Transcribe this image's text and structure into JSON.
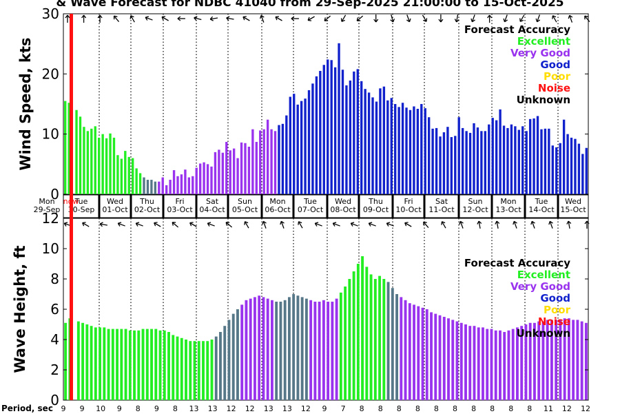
{
  "title": "& Wave Forecast for NDBC 41040 from 29-Sep-2025 21:00:00 to 15-Oct-2025",
  "now_label": "now",
  "period_label": "Period, sec",
  "day_labels": [
    {
      "day": "Mon",
      "date": "29-Sep"
    },
    {
      "day": "Tue",
      "date": "30-Sep"
    },
    {
      "day": "Wed",
      "date": "01-Oct"
    },
    {
      "day": "Thu",
      "date": "02-Oct"
    },
    {
      "day": "Fri",
      "date": "03-Oct"
    },
    {
      "day": "Sat",
      "date": "04-Oct"
    },
    {
      "day": "Sun",
      "date": "05-Oct"
    },
    {
      "day": "Mon",
      "date": "06-Oct"
    },
    {
      "day": "Tue",
      "date": "07-Oct"
    },
    {
      "day": "Wed",
      "date": "08-Oct"
    },
    {
      "day": "Thu",
      "date": "09-Oct"
    },
    {
      "day": "Fri",
      "date": "10-Oct"
    },
    {
      "day": "Sat",
      "date": "11-Oct"
    },
    {
      "day": "Sun",
      "date": "12-Oct"
    },
    {
      "day": "Mon",
      "date": "13-Oct"
    },
    {
      "day": "Tue",
      "date": "14-Oct"
    },
    {
      "day": "Wed",
      "date": "15-Oct"
    }
  ],
  "legend": {
    "title": "Forecast Accuracy",
    "items": [
      {
        "label": "Excellent",
        "color": "#22ee22"
      },
      {
        "label": "Very Good",
        "color": "#9933ee"
      },
      {
        "label": "Good",
        "color": "#1122cc"
      },
      {
        "label": "Poor",
        "color": "#ffdd00"
      },
      {
        "label": "Noise",
        "color": "#ff1111"
      },
      {
        "label": "Unknown",
        "color": "#000000"
      }
    ]
  },
  "colors": {
    "excellent": "#22ee22",
    "very_good": "#9933ee",
    "good": "#1122cc",
    "transition": "#557788",
    "now_line": "#ff1111"
  },
  "period_values": [
    "9",
    "9",
    "10",
    "9",
    "8",
    "9",
    "8",
    "13",
    "13",
    "12",
    "12",
    "13",
    "13",
    "12",
    "9",
    "7",
    "8",
    "8",
    "8",
    "8",
    "8",
    "8",
    "8",
    "8",
    "8",
    "8",
    "11",
    "12",
    "12"
  ],
  "chart_data": [
    {
      "type": "bar",
      "ylabel": "Wind Speed, kts",
      "ylim": [
        0,
        30
      ],
      "yticks": [
        0,
        10,
        20,
        30
      ],
      "values": [
        15.5,
        15.2,
        0,
        14,
        12.9,
        11.2,
        10.5,
        10.9,
        11.3,
        9.4,
        10,
        9.3,
        10.1,
        9.4,
        6.5,
        5.9,
        7.2,
        6.2,
        6,
        4.3,
        3.5,
        2.8,
        2.4,
        2.4,
        2.1,
        2.1,
        2.8,
        1.5,
        2.4,
        4,
        3,
        3.3,
        4.1,
        2.8,
        3,
        4.4,
        5.1,
        5.3,
        5,
        4.6,
        7,
        7.4,
        6.9,
        8.7,
        7.3,
        7.6,
        6,
        8.6,
        8.5,
        7.9,
        10.8,
        8.7,
        10.6,
        10.8,
        12.4,
        10.8,
        10.5,
        11.5,
        11.7,
        13.1,
        16.2,
        16.7,
        14.9,
        15.5,
        15.9,
        17.3,
        18.4,
        19.6,
        20.5,
        21.5,
        22.4,
        22.3,
        21.1,
        25.1,
        20.7,
        18.1,
        18.9,
        20.4,
        20.8,
        18.8,
        17.5,
        16.9,
        16.1,
        15.4,
        17.6,
        17.9,
        15.6,
        16,
        15,
        14.5,
        15.2,
        14.4,
        14,
        14.6,
        14.2,
        15,
        14.3,
        12.8,
        10.9,
        11,
        9.6,
        10.3,
        11.2,
        9.5,
        9.7,
        12.8,
        11,
        10.5,
        10.2,
        11.8,
        11.1,
        10.5,
        10.5,
        11.6,
        12.7,
        12.3,
        14.1,
        11.4,
        11,
        11.6,
        11.3,
        10.7,
        11.3,
        10.5,
        12.5,
        12.6,
        13,
        10.8,
        10.9,
        10.9,
        8.1,
        7.8,
        8.5,
        12.4,
        10,
        9.4,
        9.2,
        8.4,
        6.7,
        7.7
      ],
      "accuracy": [
        "E",
        "E",
        "E",
        "E",
        "E",
        "E",
        "E",
        "E",
        "E",
        "E",
        "E",
        "E",
        "E",
        "E",
        "E",
        "E",
        "E",
        "E",
        "E",
        "E",
        "E",
        "T",
        "T",
        "T",
        "T",
        "V",
        "V",
        "V",
        "V",
        "V",
        "V",
        "V",
        "V",
        "V",
        "V",
        "V",
        "V",
        "V",
        "V",
        "V",
        "V",
        "V",
        "V",
        "V",
        "V",
        "V",
        "V",
        "V",
        "V",
        "V",
        "V",
        "V",
        "V",
        "V",
        "V",
        "V",
        "V",
        "G",
        "G",
        "G",
        "G",
        "G",
        "G",
        "G",
        "G",
        "G",
        "G",
        "G",
        "G",
        "G",
        "G",
        "G",
        "G",
        "G",
        "G",
        "G",
        "G",
        "G",
        "G",
        "G",
        "G",
        "G",
        "G",
        "G",
        "G",
        "G",
        "G",
        "G",
        "G",
        "G",
        "G",
        "G",
        "G",
        "G",
        "G",
        "G",
        "G",
        "G",
        "G",
        "G",
        "G",
        "G",
        "G",
        "G",
        "G",
        "G",
        "G",
        "G",
        "G",
        "G",
        "G",
        "G",
        "G",
        "G",
        "G",
        "G",
        "G",
        "G",
        "G",
        "G",
        "G",
        "G",
        "G",
        "G",
        "G",
        "G",
        "G",
        "G",
        "G",
        "G",
        "G",
        "G",
        "G",
        "G",
        "G",
        "G",
        "G",
        "G",
        "G",
        "G",
        "G"
      ]
    },
    {
      "type": "bar",
      "ylabel": "Wave Height, ft",
      "ylim": [
        0,
        12
      ],
      "yticks": [
        0,
        2,
        4,
        6,
        8,
        10,
        12
      ],
      "values": [
        5.1,
        5.4,
        0,
        5.2,
        5.1,
        5,
        4.9,
        4.8,
        4.8,
        4.8,
        4.7,
        4.7,
        4.7,
        4.7,
        4.7,
        4.6,
        4.6,
        4.6,
        4.7,
        4.7,
        4.7,
        4.7,
        4.6,
        4.6,
        4.5,
        4.3,
        4.2,
        4.1,
        4,
        3.9,
        3.9,
        3.9,
        3.9,
        3.9,
        4,
        4.2,
        4.5,
        4.9,
        5.3,
        5.7,
        6,
        6.3,
        6.6,
        6.7,
        6.8,
        6.9,
        6.8,
        6.7,
        6.6,
        6.5,
        6.5,
        6.6,
        6.8,
        7,
        6.9,
        6.8,
        6.7,
        6.6,
        6.5,
        6.5,
        6.6,
        6.5,
        6.5,
        6.7,
        7.1,
        7.5,
        8,
        8.5,
        9,
        9.5,
        8.8,
        8.3,
        8,
        8.2,
        8,
        7.8,
        7.4,
        7,
        6.8,
        6.6,
        6.4,
        6.3,
        6.2,
        6.1,
        6,
        5.8,
        5.7,
        5.6,
        5.5,
        5.4,
        5.3,
        5.2,
        5.1,
        5,
        4.9,
        4.9,
        4.8,
        4.8,
        4.7,
        4.7,
        4.6,
        4.6,
        4.5,
        4.6,
        4.7,
        4.8,
        4.9,
        5,
        5.1,
        5.1,
        5.2,
        5.2,
        5.3,
        5.3,
        5.3,
        5.3,
        5.4,
        5.4,
        5.3,
        5.3,
        5.2,
        5.1
      ],
      "accuracy": [
        "E",
        "E",
        "E",
        "E",
        "E",
        "E",
        "E",
        "E",
        "E",
        "E",
        "E",
        "E",
        "E",
        "E",
        "E",
        "E",
        "E",
        "E",
        "E",
        "E",
        "E",
        "E",
        "E",
        "E",
        "E",
        "E",
        "E",
        "E",
        "E",
        "E",
        "E",
        "E",
        "E",
        "E",
        "E",
        "T",
        "T",
        "T",
        "T",
        "T",
        "T",
        "V",
        "V",
        "V",
        "V",
        "V",
        "V",
        "V",
        "V",
        "T",
        "T",
        "T",
        "T",
        "T",
        "T",
        "T",
        "T",
        "V",
        "V",
        "V",
        "V",
        "V",
        "V",
        "V",
        "E",
        "E",
        "E",
        "E",
        "E",
        "E",
        "E",
        "E",
        "E",
        "E",
        "E",
        "T",
        "T",
        "T",
        "V",
        "V",
        "V",
        "V",
        "V",
        "V",
        "V",
        "V",
        "V",
        "V",
        "V",
        "V",
        "V",
        "V",
        "V",
        "V",
        "V",
        "V",
        "V",
        "V",
        "V",
        "V",
        "V",
        "V",
        "V",
        "V",
        "V",
        "V",
        "V",
        "V",
        "V",
        "V",
        "V",
        "V",
        "V",
        "V",
        "V",
        "V",
        "V",
        "V",
        "V",
        "V",
        "V",
        "V"
      ]
    }
  ]
}
